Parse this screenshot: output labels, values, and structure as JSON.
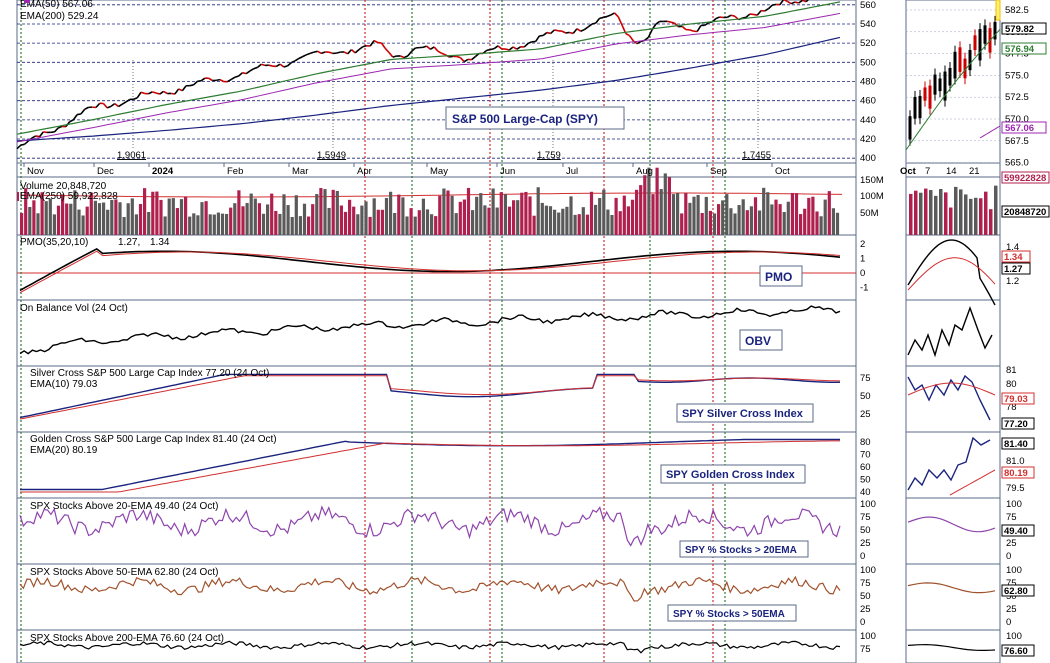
{
  "colors": {
    "panel_bg": "#e8edf5",
    "frame": "#5b6b8a",
    "price_up": "#000000",
    "price_down": "#cc0000",
    "ema50": "#2e7d32",
    "ema200": "#1a237e",
    "ema_violet": "#9c27b0",
    "volume_up": "#5a5a5a",
    "volume_down": "#b0204e",
    "pmo": "#000000",
    "signal": "#d32f2f",
    "silver": "#1a237e",
    "golden": "#1a237e",
    "breadth20": "#8e44ad",
    "breadth50": "#a0522d",
    "breadth200": "#000000",
    "red_vline": "#d32f2f",
    "green_vline": "#2e7d32",
    "box_border": "#5b6b8a",
    "label_text": "#1a237e"
  },
  "x_axis": {
    "months": [
      "Nov",
      "Dec",
      "2024",
      "Feb",
      "Mar",
      "Apr",
      "May",
      "Jun",
      "Jul",
      "Aug",
      "Sep",
      "Oct"
    ],
    "side_ticks": [
      "Oct",
      "7",
      "14",
      "21"
    ]
  },
  "price_panel": {
    "legend": [
      "EMA(50) 567.06",
      "EMA(200) 529.24"
    ],
    "title": "S&P 500 Large-Cap (SPY)",
    "y_ticks": [
      "560",
      "540",
      "520",
      "500",
      "480",
      "460",
      "440",
      "420",
      "400"
    ],
    "ratio_labels": [
      "1.9061",
      "1.5949",
      "1.759",
      "1.7455"
    ],
    "side_ticks": [
      "582.5",
      "580.0",
      "577.5",
      "575.0",
      "572.5",
      "570.0",
      "567.5",
      "565.0"
    ],
    "side_tags": [
      "579.82",
      "576.94",
      "567.06"
    ]
  },
  "volume_panel": {
    "title": "Volume 20,848,720",
    "legend": "EMA(250) 59,922,828",
    "y_ticks": [
      "150M",
      "100M",
      "50M"
    ],
    "side_tags": [
      "59922828",
      "20848720"
    ]
  },
  "pmo_panel": {
    "title_prefix": "PMO(35,20,10)",
    "value1": "1.27,",
    "value2": "1.34",
    "label": "PMO",
    "y_ticks": [
      "2",
      "1",
      "0",
      "-1"
    ],
    "side_ticks": [
      "1.4",
      "1.2"
    ],
    "side_tags": [
      "1.34",
      "1.27"
    ]
  },
  "obv_panel": {
    "title": "On Balance Vol (24 Oct)",
    "label": "OBV"
  },
  "silver_panel": {
    "title": "Silver Cross S&P 500 Large Cap Index 77.20 (24 Oct)",
    "legend": "EMA(10) 79.03",
    "label": "SPY Silver Cross Index",
    "y_ticks": [
      "75",
      "50",
      "25"
    ],
    "side_ticks": [
      "81",
      "80",
      "78"
    ],
    "side_tags": [
      "79.03",
      "77.20"
    ]
  },
  "golden_panel": {
    "title": "Golden Cross S&P 500 Large Cap Index 81.40 (24 Oct)",
    "legend": "EMA(20) 80.19",
    "label": "SPY Golden Cross Index",
    "y_ticks": [
      "80",
      "70",
      "60",
      "50",
      "40"
    ],
    "side_ticks": [
      "81.0",
      "79.5"
    ],
    "side_tags": [
      "81.40",
      "80.19"
    ]
  },
  "breadth20_panel": {
    "title": "SPX Stocks Above 20-EMA 49.40 (24 Oct)",
    "label": "SPY % Stocks > 20EMA",
    "y_ticks": [
      "100",
      "75",
      "50",
      "25",
      "0"
    ],
    "side_ticks": [
      "100",
      "75",
      "25",
      "0"
    ],
    "side_tags": [
      "49.40"
    ]
  },
  "breadth50_panel": {
    "title": "SPX Stocks Above 50-EMA 62.80 (24 Oct)",
    "label": "SPY % Stocks > 50EMA",
    "y_ticks": [
      "100",
      "75",
      "50",
      "25",
      "0"
    ],
    "side_ticks": [
      "100",
      "75",
      "50",
      "25",
      "0"
    ],
    "side_tags": [
      "62.80"
    ]
  },
  "breadth200_panel": {
    "title": "SPX Stocks Above 200-EMA 76.60 (24 Oct)",
    "y_ticks": [
      "100",
      "75"
    ],
    "side_ticks": [
      "100",
      "75"
    ],
    "side_tags": [
      "76.60"
    ]
  },
  "chart_data": {
    "type": "line",
    "title": "S&P 500 Large-Cap (SPY)",
    "x": [
      "Nov",
      "Dec",
      "2024",
      "Feb",
      "Mar",
      "Apr",
      "May",
      "Jun",
      "Jul",
      "Aug",
      "Sep",
      "Oct"
    ],
    "ylim": [
      395,
      565
    ],
    "series": [
      {
        "name": "EMA(50) 567.06",
        "values": [
          425,
          440,
          456,
          470,
          488,
          503,
          508,
          514,
          530,
          540,
          548,
          563
        ]
      },
      {
        "name": "EMA(200) 529.24",
        "values": [
          418,
          423,
          429,
          436,
          445,
          455,
          463,
          471,
          481,
          494,
          508,
          526
        ]
      },
      {
        "values": [
          410,
          452,
          470,
          488,
          508,
          520,
          505,
          525,
          548,
          535,
          555,
          578
        ]
      }
    ],
    "breadth": [
      {
        "name": "SPX Stocks Above 20-EMA",
        "last": 49.4
      },
      {
        "name": "SPX Stocks Above 50-EMA",
        "last": 62.8
      },
      {
        "name": "SPX Stocks Above 200-EMA",
        "last": 76.6
      }
    ],
    "indicators": [
      {
        "name": "Silver Cross S&P 500 Large Cap Index",
        "last": 77.2,
        "ema": 79.03
      },
      {
        "name": "Golden Cross S&P 500 Large Cap Index",
        "last": 81.4,
        "ema": 80.19
      },
      {
        "name": "PMO(35,20,10)",
        "last": 1.27,
        "signal": 1.34
      }
    ]
  }
}
